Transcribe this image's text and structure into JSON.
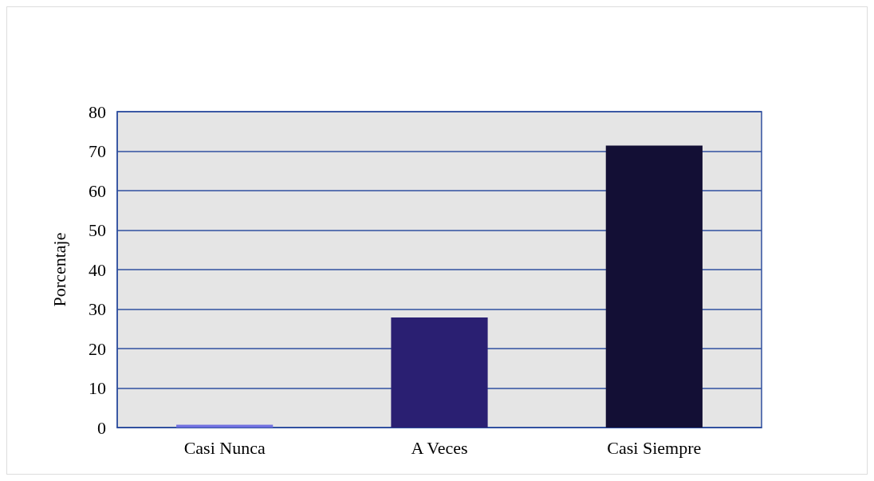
{
  "chart_data": {
    "type": "bar",
    "ylabel": "Porcentaje",
    "categories": [
      "Casi Nunca",
      "A Veces",
      "Casi Siempre"
    ],
    "values": [
      0.7,
      27.9,
      71.4
    ],
    "colors": [
      "#7070e0",
      "#2a1f72",
      "#130f35"
    ],
    "ylim": [
      0,
      80
    ],
    "yticks": [
      0,
      10,
      20,
      30,
      40,
      50,
      60,
      70,
      80
    ],
    "grid": "y"
  }
}
